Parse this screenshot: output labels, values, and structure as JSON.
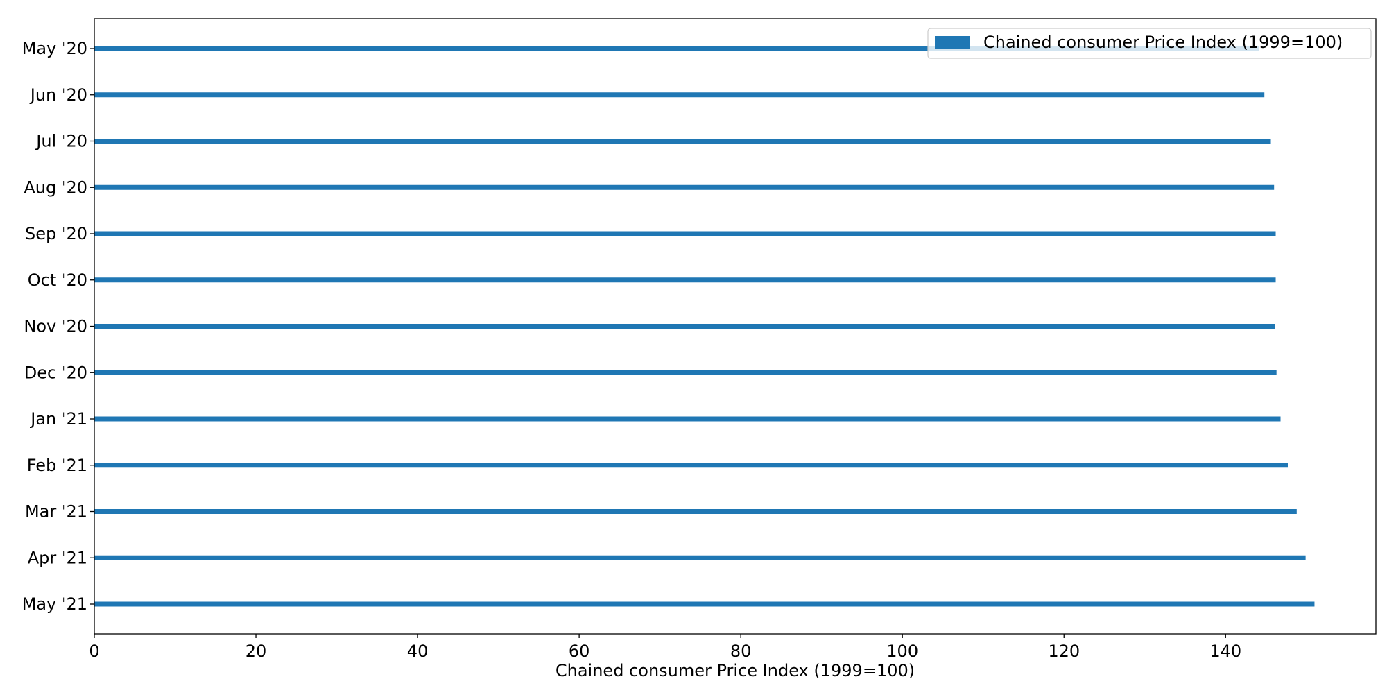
{
  "chart_data": {
    "type": "bar",
    "orientation": "horizontal",
    "title": "",
    "xlabel": "Chained consumer Price Index (1999=100)",
    "ylabel": "",
    "xlim": [
      0,
      158.6
    ],
    "x_ticks": [
      0,
      20,
      40,
      60,
      80,
      100,
      120,
      140
    ],
    "x_tick_labels": [
      "0",
      "20",
      "40",
      "60",
      "80",
      "100",
      "120",
      "140"
    ],
    "categories": [
      "May '20",
      "Jun '20",
      "Jul '20",
      "Aug '20",
      "Sep '20",
      "Oct '20",
      "Nov '20",
      "Dec '20",
      "Jan '21",
      "Feb '21",
      "Mar '21",
      "Apr '21",
      "May '21"
    ],
    "series": [
      {
        "name": "Chained consumer Price Index (1999=100)",
        "color": "#1f77b4",
        "values": [
          144.1,
          144.8,
          145.6,
          146.0,
          146.2,
          146.2,
          146.1,
          146.3,
          146.8,
          147.7,
          148.8,
          149.9,
          151.0
        ]
      }
    ],
    "legend": {
      "position": "top-right",
      "label": "Chained consumer Price Index (1999=100)"
    },
    "grid": false
  }
}
